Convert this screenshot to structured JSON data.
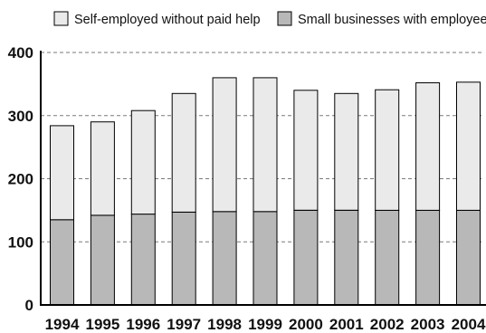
{
  "chart_data": {
    "type": "bar",
    "stacked": true,
    "title": "",
    "xlabel": "",
    "ylabel": "",
    "categories": [
      "1994",
      "1995",
      "1996",
      "1997",
      "1998",
      "1999",
      "2000",
      "2001",
      "2002",
      "2003",
      "2004"
    ],
    "series": [
      {
        "name": "Small businesses with employees",
        "color": "#b8b8b8",
        "values": [
          135,
          142,
          144,
          147,
          148,
          148,
          150,
          150,
          150,
          150,
          150
        ]
      },
      {
        "name": "Self-employed without paid help",
        "color": "#eaeaea",
        "values": [
          149,
          148,
          164,
          188,
          212,
          212,
          190,
          185,
          191,
          202,
          203
        ]
      }
    ],
    "ylim": [
      0,
      400
    ],
    "yticks": [
      "0",
      "100",
      "200",
      "300",
      "400"
    ],
    "grid": "horizontal dashed",
    "legend_position": "top",
    "legend_order": [
      "Self-employed without paid help",
      "Small businesses with employees"
    ]
  }
}
